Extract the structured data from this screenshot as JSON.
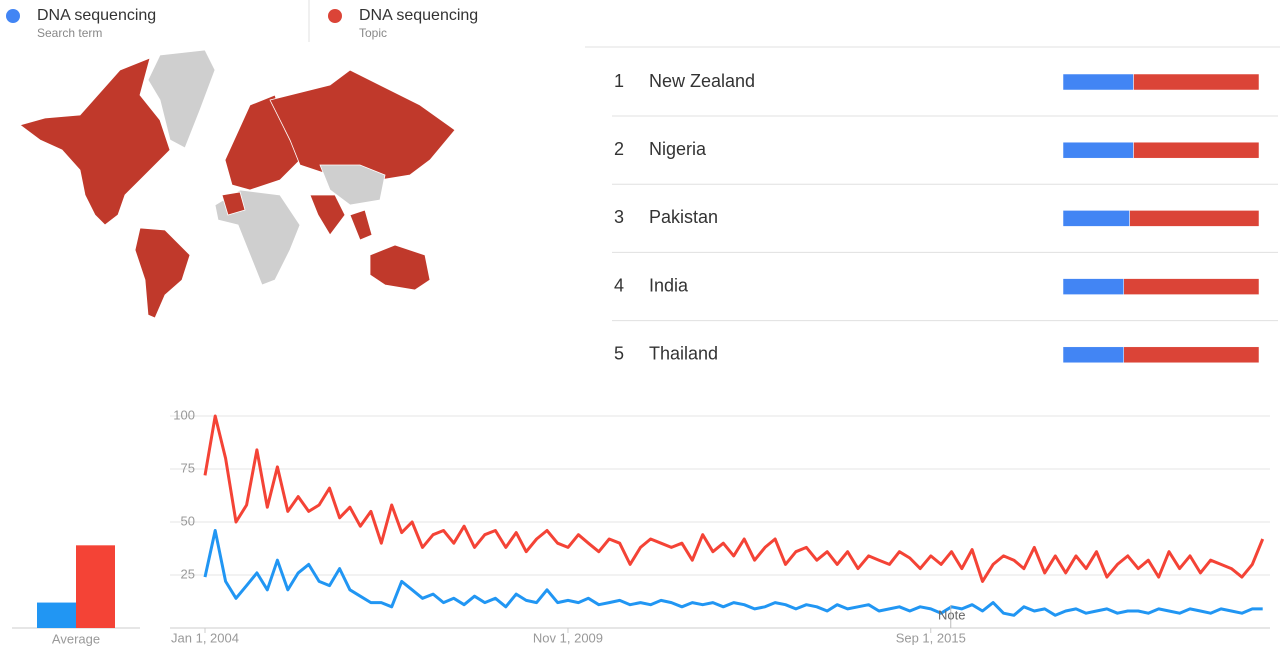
{
  "legend": [
    {
      "name": "DNA sequencing",
      "subtitle": "Search term",
      "color": "#4285f4"
    },
    {
      "name": "DNA sequencing",
      "subtitle": "Topic",
      "color": "#db4437"
    }
  ],
  "regions": {
    "rows": [
      {
        "rank": 1,
        "name": "New Zealand",
        "values": [
          36,
          64
        ]
      },
      {
        "rank": 2,
        "name": "Nigeria",
        "values": [
          36,
          64
        ]
      },
      {
        "rank": 3,
        "name": "Pakistan",
        "values": [
          34,
          66
        ]
      },
      {
        "rank": 4,
        "name": "India",
        "values": [
          31,
          69
        ]
      },
      {
        "rank": 5,
        "name": "Thailand",
        "values": [
          31,
          69
        ]
      }
    ]
  },
  "chart_data": [
    {
      "type": "bar",
      "categories": [
        "Average"
      ],
      "ylim": [
        0,
        100
      ],
      "series": [
        {
          "color": "#2196f3",
          "values": [
            12
          ]
        },
        {
          "color": "#f44336",
          "values": [
            39
          ]
        }
      ]
    },
    {
      "type": "line",
      "ylim": [
        0,
        100
      ],
      "yticks": [
        25,
        50,
        75,
        100
      ],
      "grid": true,
      "xlim": [
        "2004-01-01",
        "2021-02-01"
      ],
      "xticks": [
        {
          "value": "2004-01-01",
          "label": "Jan 1, 2004"
        },
        {
          "value": "2009-11-01",
          "label": "Nov 1, 2009"
        },
        {
          "value": "2015-09-01",
          "label": "Sep 1, 2015"
        }
      ],
      "annotations": [
        {
          "x": "2015-09-01",
          "text": "Note"
        }
      ],
      "x": [
        "2004-01-01",
        "2004-03-01",
        "2004-05-01",
        "2004-07-01",
        "2004-09-01",
        "2004-11-01",
        "2005-01-01",
        "2005-03-01",
        "2005-05-01",
        "2005-07-01",
        "2005-09-01",
        "2005-11-01",
        "2006-01-01",
        "2006-03-01",
        "2006-05-01",
        "2006-07-01",
        "2006-09-01",
        "2006-11-01",
        "2007-01-01",
        "2007-03-01",
        "2007-05-01",
        "2007-07-01",
        "2007-09-01",
        "2007-11-01",
        "2008-01-01",
        "2008-03-01",
        "2008-05-01",
        "2008-07-01",
        "2008-09-01",
        "2008-11-01",
        "2009-01-01",
        "2009-03-01",
        "2009-05-01",
        "2009-07-01",
        "2009-09-01",
        "2009-11-01",
        "2010-01-01",
        "2010-03-01",
        "2010-05-01",
        "2010-07-01",
        "2010-09-01",
        "2010-11-01",
        "2011-01-01",
        "2011-03-01",
        "2011-05-01",
        "2011-07-01",
        "2011-09-01",
        "2011-11-01",
        "2012-01-01",
        "2012-03-01",
        "2012-05-01",
        "2012-07-01",
        "2012-09-01",
        "2012-11-01",
        "2013-01-01",
        "2013-03-01",
        "2013-05-01",
        "2013-07-01",
        "2013-09-01",
        "2013-11-01",
        "2014-01-01",
        "2014-03-01",
        "2014-05-01",
        "2014-07-01",
        "2014-09-01",
        "2014-11-01",
        "2015-01-01",
        "2015-03-01",
        "2015-05-01",
        "2015-07-01",
        "2015-09-01",
        "2015-11-01",
        "2016-01-01",
        "2016-03-01",
        "2016-05-01",
        "2016-07-01",
        "2016-09-01",
        "2016-11-01",
        "2017-01-01",
        "2017-03-01",
        "2017-05-01",
        "2017-07-01",
        "2017-09-01",
        "2017-11-01",
        "2018-01-01",
        "2018-03-01",
        "2018-05-01",
        "2018-07-01",
        "2018-09-01",
        "2018-11-01",
        "2019-01-01",
        "2019-03-01",
        "2019-05-01",
        "2019-07-01",
        "2019-09-01",
        "2019-11-01",
        "2020-01-01",
        "2020-03-01",
        "2020-05-01",
        "2020-07-01",
        "2020-09-01",
        "2020-11-01",
        "2021-01-01"
      ],
      "series": [
        {
          "color": "#2196f3",
          "values": [
            24,
            46,
            22,
            14,
            20,
            26,
            18,
            32,
            18,
            26,
            30,
            22,
            20,
            28,
            18,
            15,
            12,
            12,
            10,
            22,
            18,
            14,
            16,
            12,
            14,
            11,
            15,
            12,
            14,
            10,
            16,
            13,
            12,
            18,
            12,
            13,
            12,
            14,
            11,
            12,
            13,
            11,
            12,
            11,
            13,
            12,
            10,
            12,
            11,
            12,
            10,
            12,
            11,
            9,
            10,
            12,
            11,
            9,
            11,
            10,
            8,
            11,
            9,
            10,
            11,
            8,
            9,
            10,
            8,
            10,
            9,
            7,
            10,
            9,
            11,
            8,
            12,
            7,
            6,
            10,
            8,
            9,
            6,
            8,
            9,
            7,
            8,
            9,
            7,
            8,
            8,
            7,
            9,
            8,
            7,
            9,
            8,
            7,
            9,
            8,
            7,
            9,
            9
          ]
        },
        {
          "color": "#f44336",
          "values": [
            72,
            100,
            80,
            50,
            58,
            84,
            57,
            76,
            55,
            62,
            55,
            58,
            66,
            52,
            57,
            48,
            55,
            40,
            58,
            45,
            50,
            38,
            44,
            46,
            40,
            48,
            38,
            44,
            46,
            38,
            45,
            36,
            42,
            46,
            40,
            38,
            44,
            40,
            36,
            42,
            40,
            30,
            38,
            42,
            40,
            38,
            40,
            32,
            44,
            36,
            40,
            34,
            42,
            32,
            38,
            42,
            30,
            36,
            38,
            32,
            36,
            30,
            36,
            28,
            34,
            32,
            30,
            36,
            33,
            28,
            34,
            30,
            36,
            28,
            37,
            22,
            30,
            34,
            32,
            28,
            38,
            26,
            34,
            26,
            34,
            28,
            36,
            24,
            30,
            34,
            28,
            32,
            24,
            36,
            28,
            34,
            26,
            32,
            30,
            28,
            24,
            30,
            42
          ]
        }
      ]
    }
  ]
}
